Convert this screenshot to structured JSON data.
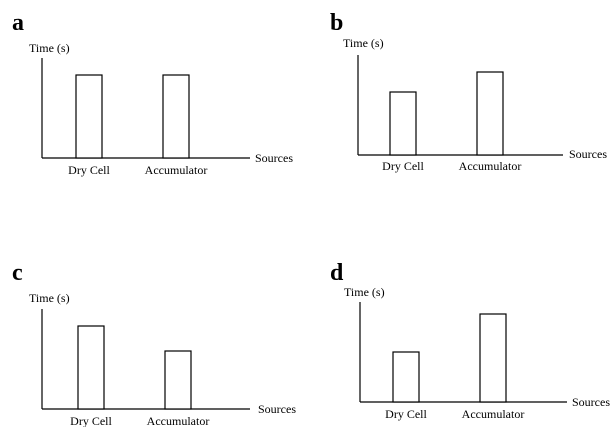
{
  "chart_data": [
    {
      "type": "bar",
      "panel": "a",
      "categories": [
        "Dry Cell",
        "Accumulator"
      ],
      "values": [
        83,
        83
      ],
      "ylim": [
        0,
        100
      ],
      "xlabel": "Sources",
      "ylabel": "Time (s)",
      "grid": false
    },
    {
      "type": "bar",
      "panel": "b",
      "categories": [
        "Dry Cell",
        "Accumulator"
      ],
      "values": [
        63,
        83
      ],
      "ylim": [
        0,
        100
      ],
      "xlabel": "Sources",
      "ylabel": "Time (s)",
      "grid": false
    },
    {
      "type": "bar",
      "panel": "c",
      "categories": [
        "Dry Cell",
        "Accumulator"
      ],
      "values": [
        83,
        58
      ],
      "ylim": [
        0,
        100
      ],
      "xlabel": "Sources",
      "ylabel": "Time (s)",
      "grid": false
    },
    {
      "type": "bar",
      "panel": "d",
      "categories": [
        "Dry Cell",
        "Accumulator"
      ],
      "values": [
        50,
        88
      ],
      "ylim": [
        0,
        100
      ],
      "xlabel": "Sources",
      "ylabel": "Time (s)",
      "grid": false
    }
  ]
}
